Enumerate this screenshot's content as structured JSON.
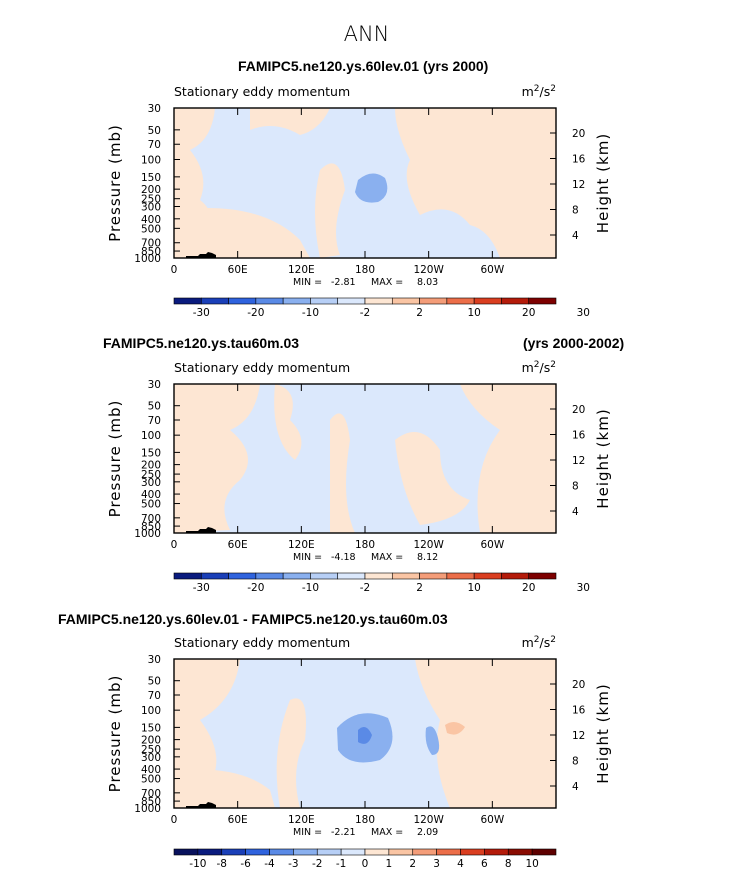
{
  "figure_title": "ANN",
  "colors": {
    "diverging_11": [
      "#0a1b7e",
      "#1a3fb8",
      "#2f63de",
      "#5a8ae6",
      "#8ab0ef",
      "#b7cff6",
      "#dbe8fc",
      "#fde6d3",
      "#fac5a4",
      "#f49d79",
      "#ec6e49",
      "#da3e20",
      "#b41b0a",
      "#7d0000"
    ],
    "background": "#dbe8fc",
    "terrain": "#000000"
  },
  "chart_data": [
    {
      "type": "contour",
      "title_left": "FAMIPC5.ne120.ys.60lev.01 (yrs 2000)",
      "title_right": "",
      "variable": "Stationary eddy momentum",
      "units": "m2/s2",
      "units_base": "m",
      "units_exp": "2",
      "units_mid": "/s",
      "units_exp2": "2",
      "ylabel": "Pressure (mb)",
      "y2label": "Height (km)",
      "x_ticks": [
        "0",
        "60E",
        "120E",
        "180",
        "120W",
        "60W"
      ],
      "x_tick_lon": [
        0,
        60,
        120,
        180,
        240,
        300
      ],
      "p_ticks": [
        "30",
        "50",
        "70",
        "100",
        "150",
        "200",
        "250",
        "300",
        "400",
        "500",
        "700",
        "850",
        "1000"
      ],
      "p_values": [
        30,
        50,
        70,
        100,
        150,
        200,
        250,
        300,
        400,
        500,
        700,
        850,
        1000
      ],
      "h_ticks": [
        "20",
        "16",
        "12",
        "8",
        "4"
      ],
      "h_values": [
        20,
        16,
        12,
        8,
        4
      ],
      "min_label": "MIN =",
      "min_value": "-2.81",
      "max_label": "MAX =",
      "max_value": "8.03",
      "colorbar_labels": [
        "-30",
        "-20",
        "-10",
        "-2",
        "2",
        "10",
        "20",
        "30"
      ],
      "colorbar_boxes": 14,
      "label_every_other": true
    },
    {
      "type": "contour",
      "title_left": "FAMIPC5.ne120.ys.tau60m.03",
      "title_right": "(yrs 2000-2002)",
      "variable": "Stationary eddy momentum",
      "units": "m2/s2",
      "units_base": "m",
      "units_exp": "2",
      "units_mid": "/s",
      "units_exp2": "2",
      "ylabel": "Pressure (mb)",
      "y2label": "Height (km)",
      "x_ticks": [
        "0",
        "60E",
        "120E",
        "180",
        "120W",
        "60W"
      ],
      "x_tick_lon": [
        0,
        60,
        120,
        180,
        240,
        300
      ],
      "p_ticks": [
        "30",
        "50",
        "70",
        "100",
        "150",
        "200",
        "250",
        "300",
        "400",
        "500",
        "700",
        "850",
        "1000"
      ],
      "p_values": [
        30,
        50,
        70,
        100,
        150,
        200,
        250,
        300,
        400,
        500,
        700,
        850,
        1000
      ],
      "h_ticks": [
        "20",
        "16",
        "12",
        "8",
        "4"
      ],
      "h_values": [
        20,
        16,
        12,
        8,
        4
      ],
      "min_label": "MIN =",
      "min_value": "-4.18",
      "max_label": "MAX =",
      "max_value": "8.12",
      "colorbar_labels": [
        "-30",
        "-20",
        "-10",
        "-2",
        "2",
        "10",
        "20",
        "30"
      ],
      "colorbar_boxes": 14,
      "label_every_other": true
    },
    {
      "type": "contour",
      "title_left": "FAMIPC5.ne120.ys.60lev.01 - FAMIPC5.ne120.ys.tau60m.03",
      "title_right": "",
      "variable": "Stationary eddy momentum",
      "units": "m2/s2",
      "units_base": "m",
      "units_exp": "2",
      "units_mid": "/s",
      "units_exp2": "2",
      "ylabel": "Pressure (mb)",
      "y2label": "Height (km)",
      "x_ticks": [
        "0",
        "60E",
        "120E",
        "180",
        "120W",
        "60W"
      ],
      "x_tick_lon": [
        0,
        60,
        120,
        180,
        240,
        300
      ],
      "p_ticks": [
        "30",
        "50",
        "70",
        "100",
        "150",
        "200",
        "250",
        "300",
        "400",
        "500",
        "700",
        "850",
        "1000"
      ],
      "p_values": [
        30,
        50,
        70,
        100,
        150,
        200,
        250,
        300,
        400,
        500,
        700,
        850,
        1000
      ],
      "h_ticks": [
        "20",
        "16",
        "12",
        "8",
        "4"
      ],
      "h_values": [
        20,
        16,
        12,
        8,
        4
      ],
      "min_label": "MIN =",
      "min_value": "-2.21",
      "max_label": "MAX =",
      "max_value": "2.09",
      "colorbar_labels": [
        "-10",
        "-8",
        "-6",
        "-4",
        "-3",
        "-2",
        "-1",
        "0",
        "1",
        "2",
        "3",
        "4",
        "6",
        "8",
        "10"
      ],
      "colorbar_boxes": 16,
      "label_every_other": false
    }
  ]
}
